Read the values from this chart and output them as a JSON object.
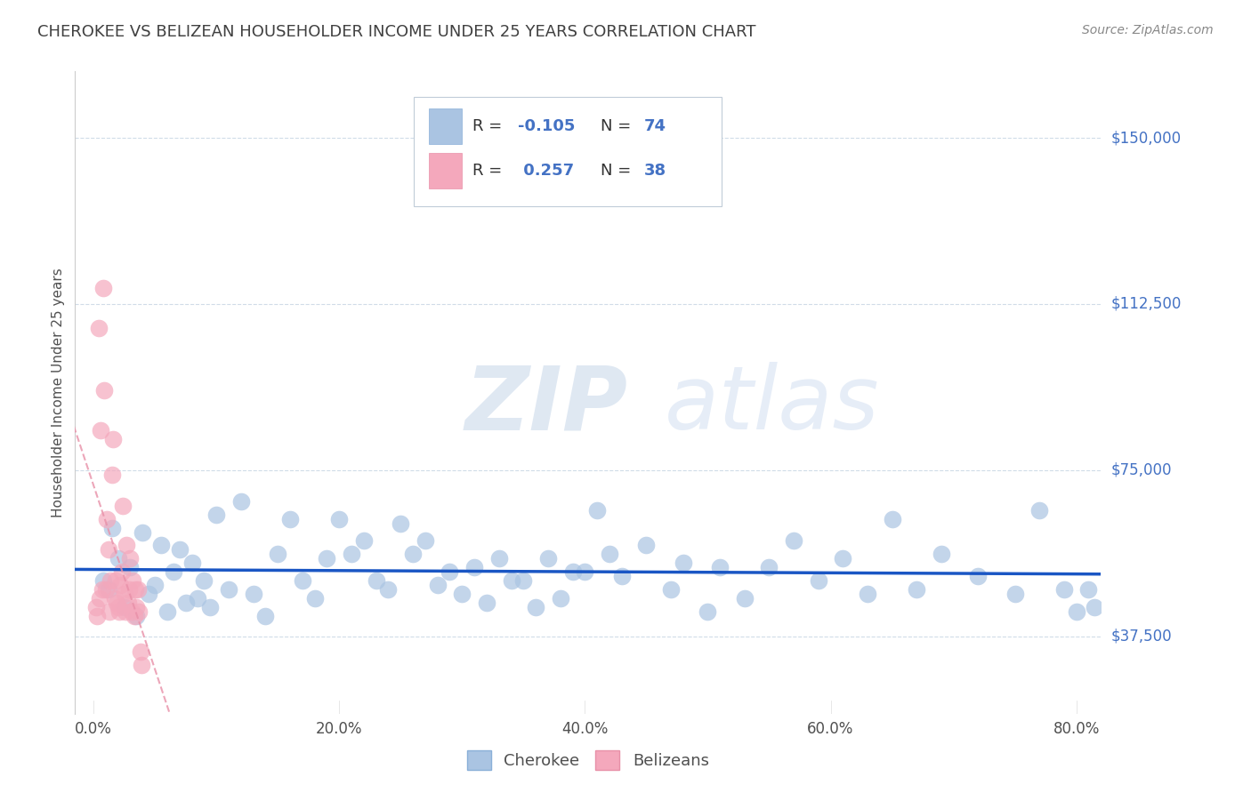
{
  "title": "CHEROKEE VS BELIZEAN HOUSEHOLDER INCOME UNDER 25 YEARS CORRELATION CHART",
  "source": "Source: ZipAtlas.com",
  "ylabel": "Householder Income Under 25 years",
  "xlabel_ticks": [
    "0.0%",
    "20.0%",
    "40.0%",
    "60.0%",
    "80.0%"
  ],
  "xlabel_vals": [
    0.0,
    20.0,
    40.0,
    60.0,
    80.0
  ],
  "xlim": [
    -1.5,
    82.0
  ],
  "ylim": [
    20000,
    165000
  ],
  "yticks": [
    37500,
    75000,
    112500,
    150000
  ],
  "ytick_labels": [
    "$37,500",
    "$75,000",
    "$112,500",
    "$150,000"
  ],
  "cherokee_color": "#aac4e2",
  "belizean_color": "#f4a8bc",
  "cherokee_line_color": "#1a56c4",
  "belizean_line_color": "#e890a8",
  "R_cherokee": -0.105,
  "N_cherokee": 74,
  "R_belizean": 0.257,
  "N_belizean": 38,
  "legend_label_cherokee": "Cherokee",
  "legend_label_belizean": "Belizeans",
  "watermark_zip": "ZIP",
  "watermark_atlas": "atlas",
  "background_color": "#ffffff",
  "grid_color": "#d0dce8",
  "title_color": "#404040",
  "axis_label_color": "#505050",
  "ytick_color": "#4472c4",
  "source_color": "#888888",
  "cherokee_x": [
    0.8,
    1.2,
    1.5,
    2.0,
    2.5,
    3.0,
    3.5,
    4.0,
    4.5,
    5.0,
    5.5,
    6.0,
    6.5,
    7.0,
    7.5,
    8.0,
    8.5,
    9.0,
    9.5,
    10.0,
    11.0,
    12.0,
    13.0,
    14.0,
    15.0,
    16.0,
    17.0,
    18.0,
    19.0,
    20.0,
    21.0,
    22.0,
    23.0,
    24.0,
    25.0,
    26.0,
    27.0,
    28.0,
    29.0,
    30.0,
    31.0,
    32.0,
    33.0,
    34.0,
    35.0,
    36.0,
    37.0,
    38.0,
    39.0,
    40.0,
    41.0,
    42.0,
    43.0,
    45.0,
    47.0,
    48.0,
    50.0,
    51.0,
    53.0,
    55.0,
    57.0,
    59.0,
    61.0,
    63.0,
    65.0,
    67.0,
    69.0,
    72.0,
    75.0,
    77.0,
    79.0,
    80.0,
    81.0,
    81.5
  ],
  "cherokee_y": [
    50000,
    48000,
    62000,
    55000,
    44000,
    53000,
    42000,
    61000,
    47000,
    49000,
    58000,
    43000,
    52000,
    57000,
    45000,
    54000,
    46000,
    50000,
    44000,
    65000,
    48000,
    68000,
    47000,
    42000,
    56000,
    64000,
    50000,
    46000,
    55000,
    64000,
    56000,
    59000,
    50000,
    48000,
    63000,
    56000,
    59000,
    49000,
    52000,
    47000,
    53000,
    45000,
    55000,
    50000,
    50000,
    44000,
    55000,
    46000,
    52000,
    52000,
    66000,
    56000,
    51000,
    58000,
    48000,
    54000,
    43000,
    53000,
    46000,
    53000,
    59000,
    50000,
    55000,
    47000,
    64000,
    48000,
    56000,
    51000,
    47000,
    66000,
    48000,
    43000,
    48000,
    44000
  ],
  "belizean_x": [
    0.2,
    0.3,
    0.4,
    0.5,
    0.6,
    0.7,
    0.8,
    0.9,
    1.0,
    1.1,
    1.2,
    1.3,
    1.4,
    1.5,
    1.6,
    1.7,
    1.8,
    1.9,
    2.0,
    2.1,
    2.2,
    2.3,
    2.4,
    2.5,
    2.6,
    2.7,
    2.8,
    2.9,
    3.0,
    3.1,
    3.2,
    3.3,
    3.4,
    3.5,
    3.6,
    3.7,
    3.8,
    3.9
  ],
  "belizean_y": [
    44000,
    42000,
    107000,
    46000,
    84000,
    48000,
    116000,
    93000,
    48000,
    64000,
    57000,
    43000,
    50000,
    74000,
    82000,
    46000,
    50000,
    45000,
    44000,
    43000,
    49000,
    52000,
    67000,
    47000,
    43000,
    58000,
    45000,
    48000,
    55000,
    43000,
    50000,
    42000,
    48000,
    44000,
    48000,
    43000,
    34000,
    31000
  ]
}
